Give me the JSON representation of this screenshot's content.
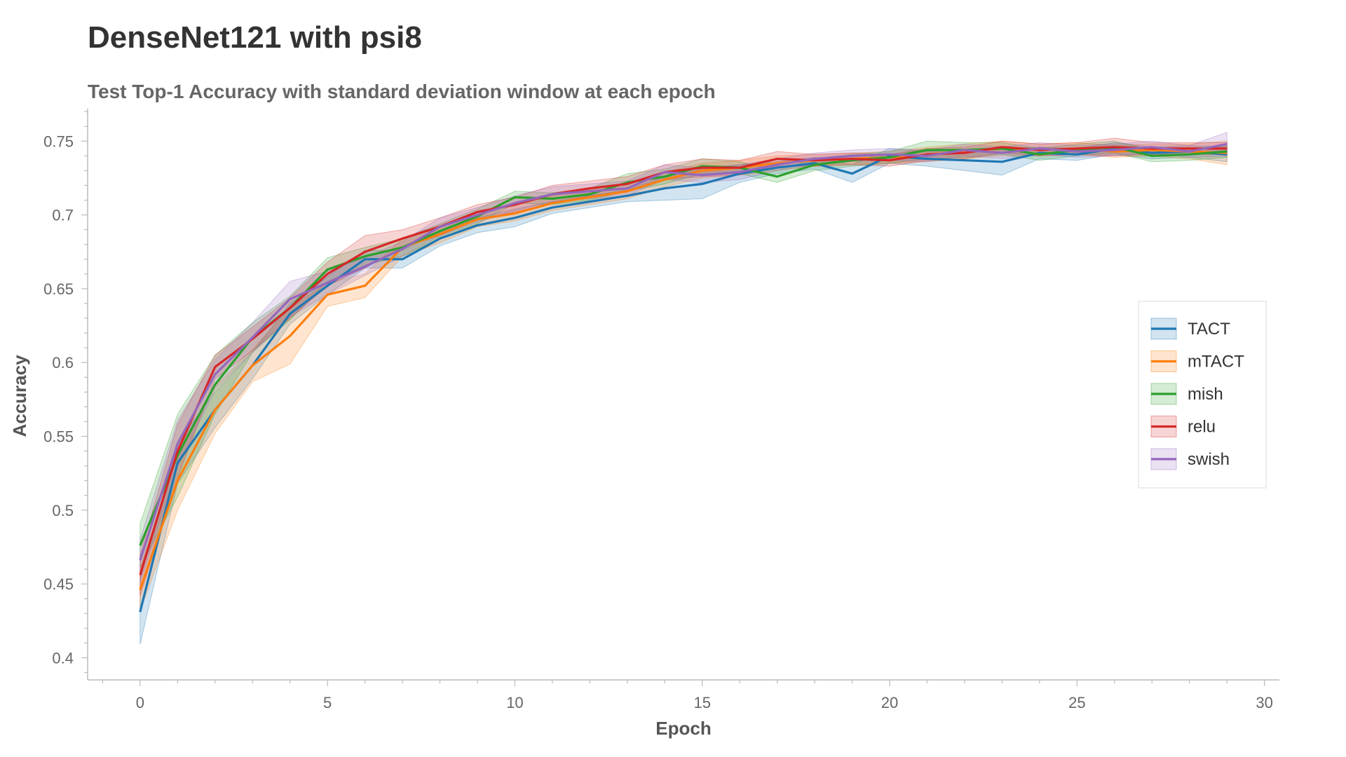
{
  "chart_data": {
    "type": "line",
    "title": "DenseNet121 with psi8",
    "subtitle": "Test Top-1 Accuracy with standard deviation window at each epoch",
    "xlabel": "Epoch",
    "ylabel": "Accuracy",
    "xlim": [
      -1.4,
      30.4
    ],
    "ylim": [
      0.385,
      0.772
    ],
    "xticks": [
      0,
      5,
      10,
      15,
      20,
      25,
      30
    ],
    "xtick_labels": [
      "0",
      "5",
      "10",
      "15",
      "20",
      "25",
      "30"
    ],
    "yticks": [
      0.4,
      0.45,
      0.5,
      0.55,
      0.6,
      0.65,
      0.7,
      0.75
    ],
    "ytick_labels": [
      "0.4",
      "0.45",
      "0.5",
      "0.55",
      "0.6",
      "0.65",
      "0.7",
      "0.75"
    ],
    "grid": false,
    "legend_position": "right",
    "band": "standard deviation window",
    "x": [
      0,
      1,
      2,
      3,
      4,
      5,
      6,
      7,
      8,
      9,
      10,
      11,
      12,
      13,
      14,
      15,
      16,
      17,
      18,
      19,
      20,
      21,
      22,
      23,
      24,
      25,
      26,
      27,
      28,
      29
    ],
    "series": [
      {
        "name": "TACT",
        "color": "#1f77b4",
        "values": [
          0.431,
          0.532,
          0.568,
          0.598,
          0.633,
          0.652,
          0.67,
          0.67,
          0.684,
          0.693,
          0.698,
          0.705,
          0.709,
          0.713,
          0.718,
          0.721,
          0.728,
          0.732,
          0.735,
          0.728,
          0.74,
          0.738,
          0.737,
          0.736,
          0.742,
          0.741,
          0.745,
          0.742,
          0.743,
          0.741
        ],
        "std": [
          0.022,
          0.014,
          0.012,
          0.009,
          0.007,
          0.006,
          0.006,
          0.006,
          0.005,
          0.005,
          0.006,
          0.004,
          0.004,
          0.004,
          0.008,
          0.01,
          0.006,
          0.004,
          0.004,
          0.006,
          0.005,
          0.005,
          0.007,
          0.009,
          0.004,
          0.004,
          0.004,
          0.004,
          0.004,
          0.005
        ]
      },
      {
        "name": "mTACT",
        "color": "#ff7f0e",
        "values": [
          0.446,
          0.52,
          0.568,
          0.598,
          0.618,
          0.646,
          0.652,
          0.678,
          0.687,
          0.697,
          0.701,
          0.708,
          0.712,
          0.716,
          0.724,
          0.73,
          0.732,
          0.735,
          0.737,
          0.738,
          0.739,
          0.741,
          0.743,
          0.745,
          0.744,
          0.745,
          0.743,
          0.744,
          0.743,
          0.742
        ],
        "std": [
          0.014,
          0.02,
          0.016,
          0.011,
          0.019,
          0.008,
          0.008,
          0.006,
          0.006,
          0.005,
          0.005,
          0.005,
          0.005,
          0.005,
          0.005,
          0.005,
          0.005,
          0.005,
          0.004,
          0.004,
          0.004,
          0.005,
          0.005,
          0.005,
          0.004,
          0.004,
          0.004,
          0.004,
          0.005,
          0.008
        ]
      },
      {
        "name": "mish",
        "color": "#2ca02c",
        "values": [
          0.476,
          0.537,
          0.585,
          0.617,
          0.637,
          0.663,
          0.672,
          0.678,
          0.689,
          0.699,
          0.712,
          0.711,
          0.714,
          0.722,
          0.726,
          0.733,
          0.732,
          0.726,
          0.734,
          0.737,
          0.739,
          0.744,
          0.744,
          0.745,
          0.741,
          0.744,
          0.746,
          0.74,
          0.741,
          0.743
        ],
        "std": [
          0.015,
          0.028,
          0.02,
          0.01,
          0.008,
          0.008,
          0.006,
          0.006,
          0.005,
          0.005,
          0.004,
          0.004,
          0.004,
          0.006,
          0.005,
          0.005,
          0.004,
          0.004,
          0.004,
          0.004,
          0.004,
          0.006,
          0.005,
          0.004,
          0.004,
          0.004,
          0.004,
          0.004,
          0.004,
          0.004
        ]
      },
      {
        "name": "relu",
        "color": "#d62728",
        "values": [
          0.456,
          0.54,
          0.597,
          0.616,
          0.637,
          0.66,
          0.675,
          0.684,
          0.692,
          0.702,
          0.707,
          0.714,
          0.718,
          0.721,
          0.729,
          0.732,
          0.732,
          0.738,
          0.737,
          0.738,
          0.737,
          0.741,
          0.742,
          0.746,
          0.744,
          0.745,
          0.746,
          0.745,
          0.745,
          0.745
        ],
        "std": [
          0.014,
          0.018,
          0.008,
          0.008,
          0.007,
          0.008,
          0.011,
          0.006,
          0.006,
          0.005,
          0.005,
          0.006,
          0.005,
          0.005,
          0.005,
          0.006,
          0.005,
          0.005,
          0.004,
          0.004,
          0.004,
          0.004,
          0.004,
          0.004,
          0.004,
          0.004,
          0.006,
          0.004,
          0.004,
          0.004
        ]
      },
      {
        "name": "swish",
        "color": "#9467bd",
        "values": [
          0.466,
          0.545,
          0.592,
          0.617,
          0.643,
          0.654,
          0.665,
          0.677,
          0.692,
          0.7,
          0.708,
          0.714,
          0.716,
          0.718,
          0.729,
          0.727,
          0.729,
          0.734,
          0.738,
          0.74,
          0.741,
          0.74,
          0.744,
          0.742,
          0.745,
          0.743,
          0.744,
          0.746,
          0.743,
          0.748
        ],
        "std": [
          0.014,
          0.016,
          0.01,
          0.01,
          0.012,
          0.008,
          0.006,
          0.005,
          0.006,
          0.005,
          0.005,
          0.005,
          0.005,
          0.005,
          0.005,
          0.005,
          0.005,
          0.004,
          0.004,
          0.004,
          0.004,
          0.004,
          0.004,
          0.004,
          0.004,
          0.004,
          0.004,
          0.004,
          0.004,
          0.008
        ]
      }
    ]
  }
}
